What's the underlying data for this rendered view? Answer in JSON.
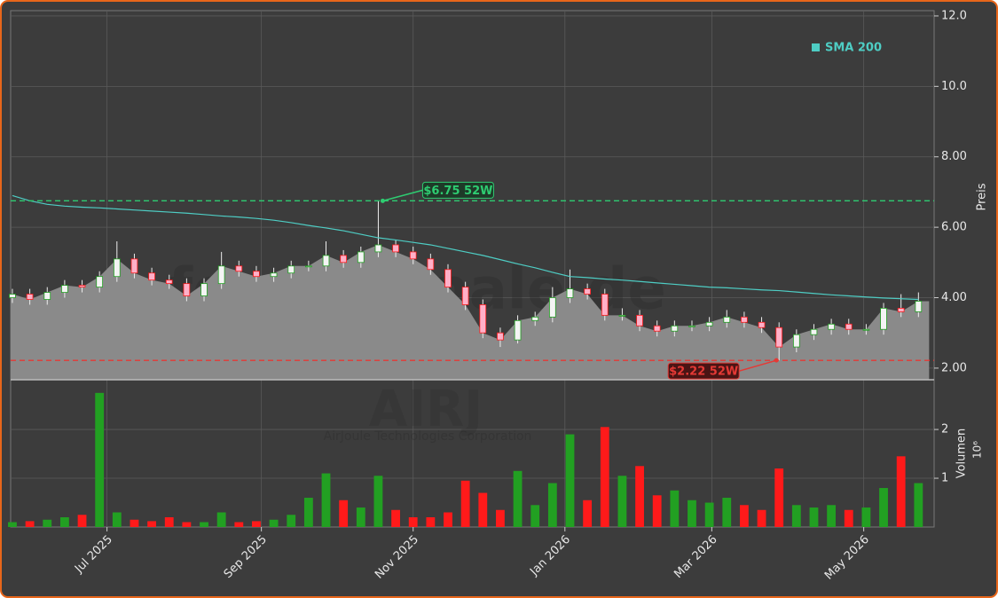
{
  "chart_data": {
    "type": "candlestick",
    "watermark": "forexsignale.de",
    "symbol": "AIRJ",
    "company": "AirJoule Technologies Corporation",
    "y_label": "Preis",
    "volume_label": "Volumen",
    "volume_unit": "10⁶",
    "categories": [
      null,
      null,
      null,
      null,
      null,
      null,
      null,
      null,
      null,
      null,
      null,
      null,
      null,
      null,
      null,
      null,
      null,
      null,
      null,
      null,
      null,
      null,
      null,
      null,
      null,
      null,
      null,
      null,
      null,
      null,
      null,
      null,
      null,
      null,
      null,
      null,
      null,
      null,
      null,
      null,
      null,
      null,
      null,
      null,
      null,
      null,
      null,
      null,
      null,
      null,
      null,
      null,
      null
    ],
    "open": [
      4.0,
      4.1,
      3.95,
      4.15,
      4.35,
      4.3,
      4.6,
      5.1,
      4.7,
      4.5,
      4.4,
      4.05,
      4.4,
      4.9,
      4.75,
      4.6,
      4.7,
      4.9,
      4.9,
      5.2,
      5.0,
      5.3,
      5.5,
      5.3,
      5.1,
      4.8,
      4.3,
      3.8,
      3.0,
      2.8,
      3.35,
      3.45,
      4.0,
      4.25,
      4.1,
      3.5,
      3.5,
      3.2,
      3.05,
      3.2,
      3.2,
      3.3,
      3.45,
      3.3,
      3.15,
      2.6,
      2.95,
      3.1,
      3.25,
      3.1,
      3.1,
      3.7,
      3.6
    ],
    "high": [
      4.25,
      4.25,
      4.3,
      4.5,
      4.5,
      4.75,
      5.6,
      5.25,
      4.85,
      4.65,
      4.55,
      4.55,
      5.3,
      5.05,
      4.9,
      4.85,
      5.05,
      5.05,
      5.6,
      5.35,
      5.45,
      6.75,
      5.65,
      5.45,
      5.25,
      4.95,
      4.45,
      3.95,
      3.15,
      3.5,
      3.6,
      4.3,
      4.8,
      4.4,
      4.25,
      3.7,
      3.65,
      3.35,
      3.35,
      3.35,
      3.45,
      3.65,
      3.6,
      3.45,
      3.3,
      3.1,
      3.25,
      3.4,
      3.4,
      3.25,
      3.85,
      4.1,
      4.15
    ],
    "low": [
      3.85,
      3.8,
      3.8,
      4.0,
      4.15,
      4.15,
      4.45,
      4.55,
      4.35,
      4.25,
      3.9,
      3.9,
      4.25,
      4.6,
      4.45,
      4.45,
      4.55,
      4.75,
      4.75,
      4.85,
      4.85,
      5.15,
      5.15,
      4.95,
      4.65,
      4.15,
      3.65,
      2.85,
      2.6,
      2.7,
      3.2,
      3.3,
      3.85,
      3.95,
      3.35,
      3.35,
      3.05,
      2.9,
      2.9,
      3.05,
      3.05,
      3.15,
      3.15,
      3.0,
      2.22,
      2.45,
      2.8,
      2.95,
      2.95,
      2.95,
      2.95,
      3.45,
      3.45
    ],
    "close": [
      4.1,
      3.95,
      4.15,
      4.35,
      4.3,
      4.6,
      5.1,
      4.7,
      4.5,
      4.4,
      4.05,
      4.4,
      4.9,
      4.75,
      4.6,
      4.7,
      4.9,
      4.9,
      5.2,
      5.0,
      5.3,
      5.5,
      5.3,
      5.1,
      4.8,
      4.3,
      3.8,
      3.0,
      2.8,
      3.35,
      3.45,
      4.0,
      4.25,
      4.1,
      3.5,
      3.5,
      3.2,
      3.05,
      3.2,
      3.2,
      3.3,
      3.45,
      3.3,
      3.15,
      2.6,
      2.95,
      3.1,
      3.25,
      3.1,
      3.1,
      3.7,
      3.6,
      3.9
    ],
    "volume": [
      0.1,
      0.12,
      0.15,
      0.2,
      0.25,
      2.75,
      0.3,
      0.15,
      0.12,
      0.2,
      0.1,
      0.1,
      0.3,
      0.1,
      0.12,
      0.15,
      0.25,
      0.6,
      1.1,
      0.55,
      0.4,
      1.05,
      0.35,
      0.2,
      0.2,
      0.3,
      0.95,
      0.7,
      0.35,
      1.15,
      0.45,
      0.9,
      1.9,
      0.55,
      2.05,
      1.05,
      1.25,
      0.65,
      0.75,
      0.55,
      0.5,
      0.6,
      0.45,
      0.35,
      1.2,
      0.45,
      0.4,
      0.45,
      0.35,
      0.4,
      0.8,
      1.45,
      0.9
    ],
    "series": [
      {
        "name": "SMA 200",
        "color": "#4ecdc4",
        "values": [
          6.9,
          6.75,
          6.65,
          6.6,
          6.57,
          6.55,
          6.52,
          6.49,
          6.46,
          6.43,
          6.4,
          6.36,
          6.32,
          6.29,
          6.25,
          6.2,
          6.13,
          6.05,
          5.98,
          5.9,
          5.8,
          5.7,
          5.64,
          5.57,
          5.5,
          5.4,
          5.3,
          5.2,
          5.08,
          4.96,
          4.85,
          4.72,
          4.6,
          4.57,
          4.53,
          4.5,
          4.46,
          4.42,
          4.38,
          4.34,
          4.3,
          4.28,
          4.25,
          4.22,
          4.2,
          4.16,
          4.12,
          4.08,
          4.05,
          4.02,
          3.99,
          3.97,
          3.95
        ]
      }
    ],
    "up_color": "#22a022",
    "down_color": "#ff1a1a",
    "area_color": "#8a8a8a",
    "annotations": [
      {
        "label": "$6.75 52W",
        "value": 6.75,
        "color": "#2ecc71"
      },
      {
        "label": "$2.22 52W",
        "value": 2.22,
        "color": "#e53935"
      }
    ],
    "xlim": [
      -0.1,
      52.9
    ],
    "xticks": [
      {
        "value": 5.43,
        "label": "Jul 2025"
      },
      {
        "value": 14.29,
        "label": "Sep 2025"
      },
      {
        "value": 23,
        "label": "Nov 2025"
      },
      {
        "value": 31.71,
        "label": "Jan 2026"
      },
      {
        "value": 40.14,
        "label": "Mar 2026"
      },
      {
        "value": 48.86,
        "label": "May 2026"
      }
    ],
    "ylim": [
      1.67,
      12.15
    ],
    "yticks": [
      {
        "value": 2,
        "label": "2.00"
      },
      {
        "value": 4,
        "label": "4.00"
      },
      {
        "value": 6,
        "label": "6.00"
      },
      {
        "value": 8,
        "label": "8.00"
      },
      {
        "value": 10,
        "label": "10.0"
      },
      {
        "value": 12,
        "label": "12.0"
      }
    ],
    "y2lim": [
      0,
      3.02
    ],
    "y2ticks": [
      1,
      2
    ],
    "grid": true
  }
}
